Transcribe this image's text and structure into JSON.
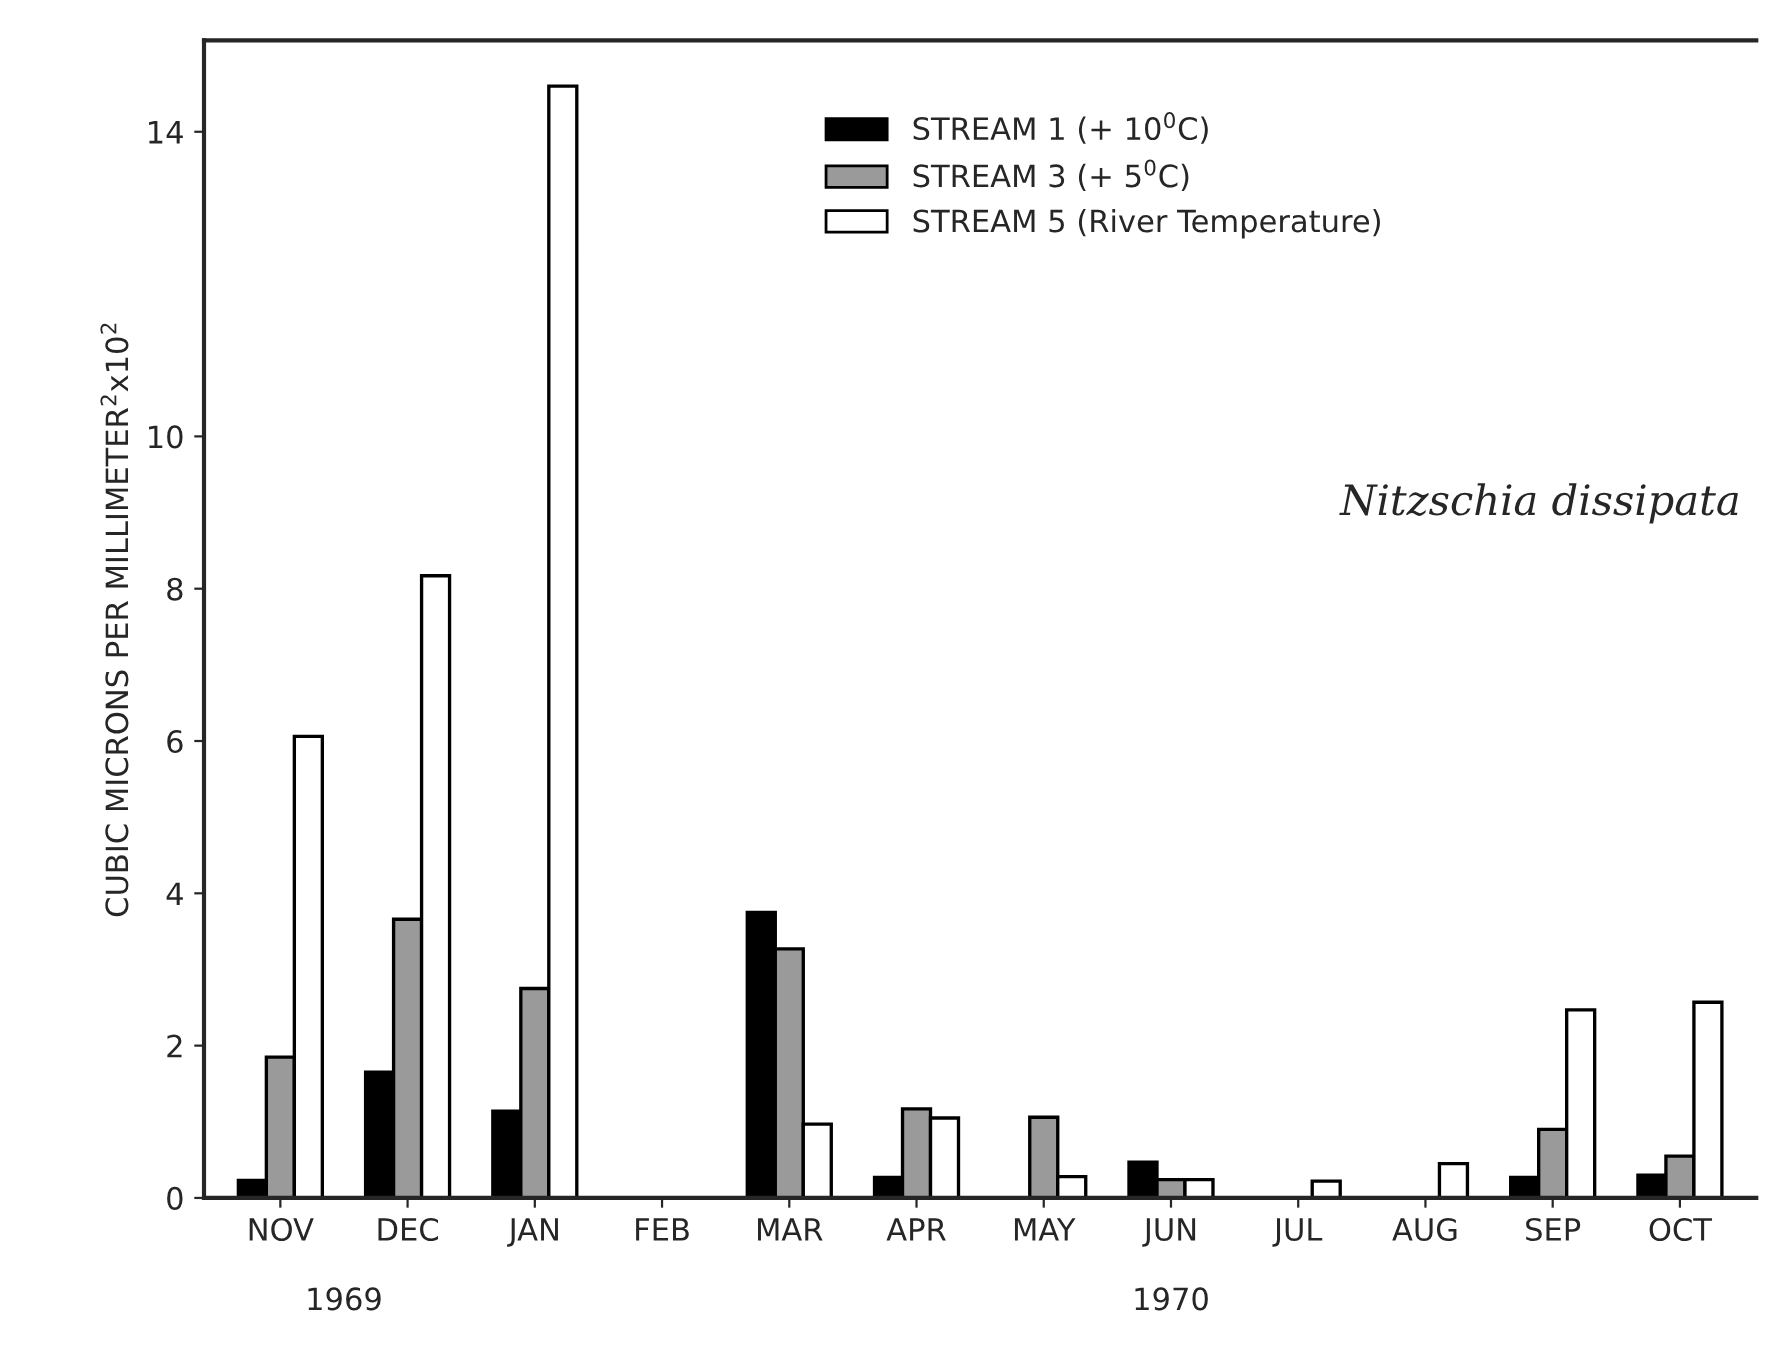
{
  "chart_data": {
    "type": "bar",
    "ylabel": "CUBIC MICRONS PER MILLIMETER$^{2}$x10$^{2}$",
    "categories": [
      "NOV",
      "DEC",
      "JAN",
      "FEB",
      "MAR",
      "APR",
      "MAY",
      "JUN",
      "JUL",
      "AUG",
      "SEP",
      "OCT"
    ],
    "series": [
      {
        "name": "STREAM 1 (+ 10$^{0}$C)",
        "color": "#000000",
        "values": [
          0.23,
          1.65,
          1.14,
          null,
          3.75,
          0.27,
          null,
          0.47,
          null,
          null,
          0.27,
          0.3
        ]
      },
      {
        "name": "STREAM 3 (+ 5$^{0}$C)",
        "color": "#9a9a9a",
        "values": [
          1.85,
          3.66,
          2.75,
          null,
          3.27,
          1.17,
          1.06,
          0.24,
          null,
          null,
          0.9,
          0.55
        ]
      },
      {
        "name": "STREAM 5 (River Temperature)",
        "color": "#ffffff",
        "values": [
          6.06,
          8.17,
          14.6,
          null,
          0.97,
          1.05,
          0.28,
          0.24,
          0.22,
          0.45,
          2.47,
          2.57
        ]
      }
    ],
    "ylim": [
      0,
      15.2
    ],
    "yticks": [
      0,
      2,
      4,
      6,
      8,
      10,
      14
    ],
    "legend": "top",
    "annotations": [
      "Nitzschia dissipata",
      "1969",
      "1970"
    ]
  }
}
